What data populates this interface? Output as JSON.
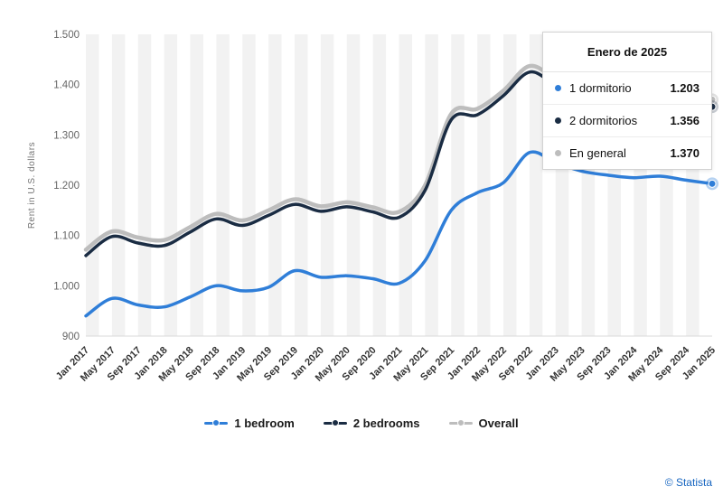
{
  "chart_data": {
    "type": "line",
    "title": "",
    "xlabel": "",
    "ylabel": "Rent in U.S. dollars",
    "ylim": [
      900,
      1500
    ],
    "yticks": [
      "900",
      "1.000",
      "1.100",
      "1.200",
      "1.300",
      "1.400",
      "1.500"
    ],
    "grid": "vertical-bands",
    "legend_position": "bottom",
    "categories": [
      "Jan 2017",
      "May 2017",
      "Sep 2017",
      "Jan 2018",
      "May 2018",
      "Sep 2018",
      "Jan 2019",
      "May 2019",
      "Sep 2019",
      "Jan 2020",
      "May 2020",
      "Sep 2020",
      "Jan 2021",
      "May 2021",
      "Sep 2021",
      "Jan 2022",
      "May 2022",
      "Sep 2022",
      "Jan 2023",
      "May 2023",
      "Sep 2023",
      "Jan 2024",
      "May 2024",
      "Sep 2024",
      "Jan 2025"
    ],
    "series": [
      {
        "name": "1 bedroom",
        "color": "#2f7ed8",
        "values": [
          940,
          975,
          962,
          958,
          978,
          1000,
          990,
          997,
          1030,
          1017,
          1020,
          1014,
          1005,
          1050,
          1150,
          1185,
          1205,
          1265,
          1245,
          1228,
          1220,
          1215,
          1218,
          1210,
          1203
        ]
      },
      {
        "name": "2 bedrooms",
        "color": "#1a2c43",
        "values": [
          1060,
          1098,
          1085,
          1080,
          1107,
          1133,
          1120,
          1140,
          1162,
          1148,
          1157,
          1147,
          1136,
          1190,
          1330,
          1340,
          1378,
          1425,
          1400,
          1380,
          1372,
          1362,
          1368,
          1362,
          1356
        ]
      },
      {
        "name": "Overall",
        "color": "#bdbdbd",
        "values": [
          1072,
          1108,
          1096,
          1091,
          1117,
          1143,
          1130,
          1150,
          1172,
          1158,
          1166,
          1156,
          1147,
          1200,
          1342,
          1352,
          1388,
          1437,
          1412,
          1392,
          1384,
          1374,
          1380,
          1374,
          1370
        ]
      }
    ]
  },
  "tooltip": {
    "title": "Enero de 2025",
    "rows": [
      {
        "label": "1 dormitorio",
        "value": "1.203",
        "color": "#2f7ed8"
      },
      {
        "label": "2 dormitorios",
        "value": "1.356",
        "color": "#1a2c43"
      },
      {
        "label": "En general",
        "value": "1.370",
        "color": "#bdbdbd"
      }
    ]
  },
  "legend": {
    "items": [
      {
        "label": "1 bedroom",
        "color": "#2f7ed8"
      },
      {
        "label": "2 bedrooms",
        "color": "#1a2c43"
      },
      {
        "label": "Overall",
        "color": "#bdbdbd"
      }
    ]
  },
  "footer": {
    "credit": "© Statista"
  },
  "colors": {
    "band": "#f2f2f2",
    "axis_text": "#666666",
    "x_label": "#333333",
    "axis_line": "#d8d8d8",
    "y_title": "#757575"
  }
}
